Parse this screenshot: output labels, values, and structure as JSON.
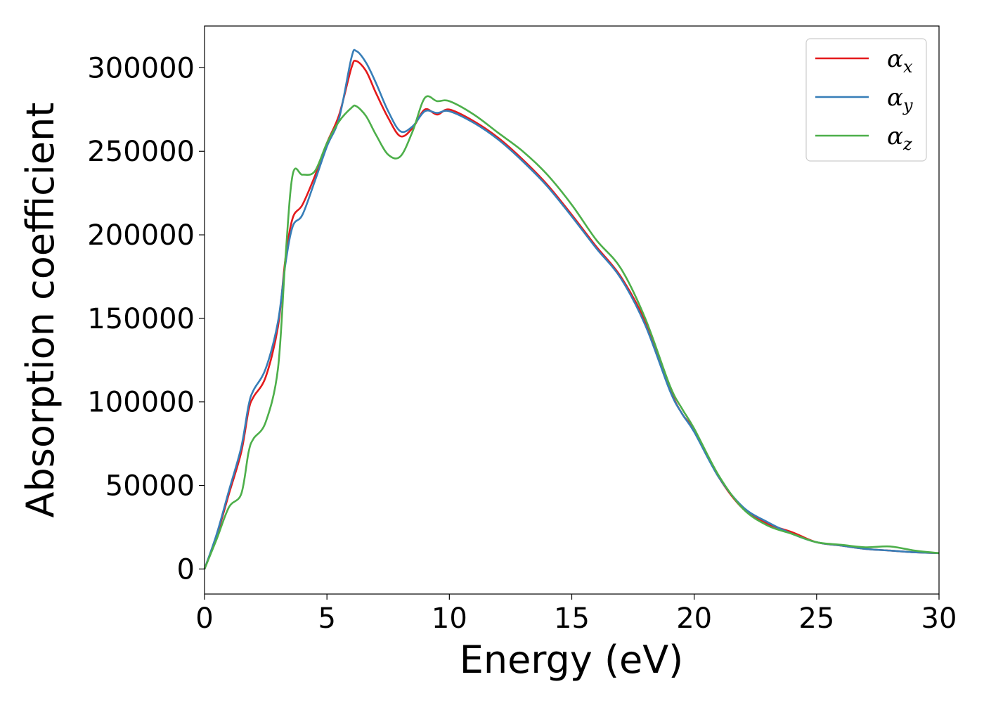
{
  "chart_data": {
    "type": "line",
    "title": "",
    "xlabel": "Energy (eV)",
    "ylabel": "Absorption coefficient",
    "xlim": [
      0,
      30
    ],
    "ylim": [
      -15000,
      325000
    ],
    "xticks": [
      0,
      5,
      10,
      15,
      20,
      25,
      30
    ],
    "yticks": [
      0,
      50000,
      100000,
      150000,
      200000,
      250000,
      300000
    ],
    "grid": false,
    "legend": {
      "position": "top-right"
    },
    "series": [
      {
        "name": "α_x",
        "label_main": "α",
        "label_sub": "x",
        "color": "#e41a1c",
        "x": [
          0,
          0.5,
          1,
          1.5,
          1.8,
          2,
          2.5,
          3,
          3.3,
          3.6,
          4,
          4.5,
          5,
          5.5,
          6,
          6.2,
          6.6,
          7,
          7.5,
          8,
          8.5,
          9,
          9.5,
          10,
          11,
          12,
          13,
          14,
          15,
          16,
          17,
          18,
          19,
          19.5,
          20,
          21,
          22,
          23,
          24,
          25,
          26,
          27,
          28,
          29,
          30
        ],
        "y": [
          0,
          20000,
          45000,
          70000,
          95000,
          103000,
          115000,
          145000,
          185000,
          210000,
          218000,
          235000,
          255000,
          272000,
          300000,
          304000,
          298000,
          285000,
          270000,
          259000,
          264000,
          275000,
          272000,
          275000,
          268000,
          258000,
          245000,
          230000,
          212000,
          193000,
          175000,
          148000,
          108000,
          93000,
          83000,
          55000,
          36000,
          27000,
          22000,
          16000,
          14000,
          12000,
          11000,
          10000,
          9500
        ]
      },
      {
        "name": "α_y",
        "label_main": "α",
        "label_sub": "y",
        "color": "#377eb8",
        "x": [
          0,
          0.5,
          1,
          1.5,
          1.8,
          2,
          2.5,
          3,
          3.3,
          3.6,
          4,
          4.5,
          5,
          5.5,
          6,
          6.2,
          6.6,
          7,
          7.5,
          8,
          8.5,
          9,
          9.5,
          10,
          11,
          12,
          13,
          14,
          15,
          16,
          17,
          18,
          19,
          19.5,
          20,
          21,
          22,
          23,
          24,
          25,
          26,
          27,
          28,
          29,
          30
        ],
        "y": [
          0,
          21000,
          47000,
          73000,
          98000,
          107000,
          120000,
          148000,
          182000,
          205000,
          212000,
          232000,
          253000,
          270000,
          306000,
          310000,
          303000,
          291000,
          274000,
          262000,
          265000,
          274000,
          273000,
          274000,
          267000,
          257000,
          244000,
          229000,
          211000,
          192000,
          174000,
          146000,
          107000,
          93000,
          82000,
          55000,
          37000,
          28000,
          21000,
          16000,
          14000,
          12000,
          11000,
          10000,
          9500
        ]
      },
      {
        "name": "α_z",
        "label_main": "α",
        "label_sub": "z",
        "color": "#4daf4a",
        "x": [
          0,
          0.5,
          1,
          1.5,
          1.8,
          2,
          2.5,
          3,
          3.3,
          3.6,
          4,
          4.5,
          5,
          5.5,
          6,
          6.2,
          6.6,
          7,
          7.5,
          8,
          8.5,
          9,
          9.5,
          10,
          11,
          12,
          13,
          14,
          15,
          16,
          17,
          18,
          19,
          19.5,
          20,
          21,
          22,
          23,
          24,
          25,
          26,
          27,
          28,
          29,
          30
        ],
        "y": [
          0,
          18000,
          37000,
          45000,
          70000,
          78000,
          88000,
          120000,
          185000,
          236000,
          236000,
          238000,
          255000,
          268000,
          276000,
          277000,
          271000,
          260000,
          248000,
          247000,
          262000,
          282000,
          280000,
          280000,
          272000,
          261000,
          250000,
          236000,
          218000,
          197000,
          180000,
          150000,
          110000,
          96000,
          84000,
          56000,
          36000,
          26000,
          21000,
          16000,
          14500,
          13000,
          13500,
          11000,
          9500
        ]
      }
    ]
  }
}
